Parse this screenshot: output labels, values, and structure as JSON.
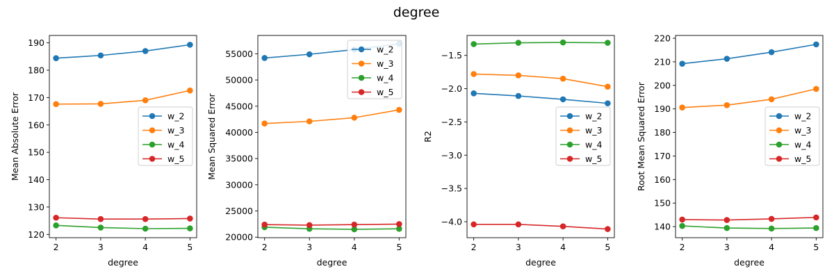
{
  "figure_title": "degree",
  "colors": {
    "w_2": "#1f77b4",
    "w_3": "#ff7f0e",
    "w_4": "#2ca02c",
    "w_5": "#d62728"
  },
  "chart_data": [
    {
      "type": "line",
      "xlabel": "degree",
      "ylabel": "Mean Absolute Error",
      "x": [
        2,
        3,
        4,
        5
      ],
      "xticks": [
        "2",
        "3",
        "4",
        "5"
      ],
      "xlim": [
        1.85,
        5.15
      ],
      "ylim": [
        118.8,
        192.7
      ],
      "yticks": [
        120,
        130,
        140,
        150,
        160,
        170,
        180,
        190
      ],
      "ytick_labels": [
        "120",
        "130",
        "140",
        "150",
        "160",
        "170",
        "180",
        "190"
      ],
      "legend_loc": "center-right",
      "series": [
        {
          "name": "w_2",
          "values": [
            184.4,
            185.4,
            187.0,
            189.3
          ]
        },
        {
          "name": "w_3",
          "values": [
            167.6,
            167.7,
            169.0,
            172.6
          ]
        },
        {
          "name": "w_4",
          "values": [
            123.3,
            122.5,
            122.1,
            122.2
          ]
        },
        {
          "name": "w_5",
          "values": [
            126.1,
            125.6,
            125.6,
            125.8
          ]
        }
      ]
    },
    {
      "type": "line",
      "xlabel": "degree",
      "ylabel": "Mean Squared Error",
      "x": [
        2,
        3,
        4,
        5
      ],
      "xticks": [
        "2",
        "3",
        "4",
        "5"
      ],
      "xlim": [
        1.85,
        5.15
      ],
      "ylim": [
        19900,
        58500
      ],
      "yticks": [
        20000,
        25000,
        30000,
        35000,
        40000,
        45000,
        50000,
        55000
      ],
      "ytick_labels": [
        "20000",
        "25000",
        "30000",
        "35000",
        "40000",
        "45000",
        "50000",
        "55000"
      ],
      "legend_loc": "top-right",
      "series": [
        {
          "name": "w_2",
          "values": [
            54200,
            54900,
            55800,
            56900
          ]
        },
        {
          "name": "w_3",
          "values": [
            41700,
            42100,
            42800,
            44300
          ]
        },
        {
          "name": "w_4",
          "values": [
            21900,
            21600,
            21500,
            21600
          ]
        },
        {
          "name": "w_5",
          "values": [
            22400,
            22300,
            22400,
            22500
          ]
        }
      ]
    },
    {
      "type": "line",
      "xlabel": "degree",
      "ylabel": "R2",
      "x": [
        2,
        3,
        4,
        5
      ],
      "xticks": [
        "2",
        "3",
        "4",
        "5"
      ],
      "xlim": [
        1.85,
        5.15
      ],
      "ylim": [
        -4.24,
        -1.2
      ],
      "yticks": [
        -4.0,
        -3.5,
        -3.0,
        -2.5,
        -2.0,
        -1.5
      ],
      "ytick_labels": [
        "−4.0",
        "−3.5",
        "−3.0",
        "−2.5",
        "−2.0",
        "−1.5"
      ],
      "legend_loc": "center-right",
      "series": [
        {
          "name": "w_2",
          "values": [
            -2.07,
            -2.11,
            -2.16,
            -2.22
          ]
        },
        {
          "name": "w_3",
          "values": [
            -1.78,
            -1.8,
            -1.85,
            -1.97
          ]
        },
        {
          "name": "w_4",
          "values": [
            -1.33,
            -1.31,
            -1.305,
            -1.31
          ]
        },
        {
          "name": "w_5",
          "values": [
            -4.04,
            -4.04,
            -4.07,
            -4.11
          ]
        }
      ]
    },
    {
      "type": "line",
      "xlabel": "degree",
      "ylabel": "Root Mean Squared Error",
      "x": [
        2,
        3,
        4,
        5
      ],
      "xticks": [
        "2",
        "3",
        "4",
        "5"
      ],
      "xlim": [
        1.85,
        5.15
      ],
      "ylim": [
        135.3,
        221.2
      ],
      "yticks": [
        140,
        150,
        160,
        170,
        180,
        190,
        200,
        210,
        220
      ],
      "ytick_labels": [
        "140",
        "150",
        "160",
        "170",
        "180",
        "190",
        "200",
        "210",
        "220"
      ],
      "legend_loc": "center-right",
      "series": [
        {
          "name": "w_2",
          "values": [
            209.2,
            211.3,
            214.1,
            217.4
          ]
        },
        {
          "name": "w_3",
          "values": [
            190.6,
            191.6,
            194.1,
            198.5
          ]
        },
        {
          "name": "w_4",
          "values": [
            140.3,
            139.4,
            139.2,
            139.4
          ]
        },
        {
          "name": "w_5",
          "values": [
            143.0,
            142.8,
            143.3,
            143.9
          ]
        }
      ]
    }
  ]
}
